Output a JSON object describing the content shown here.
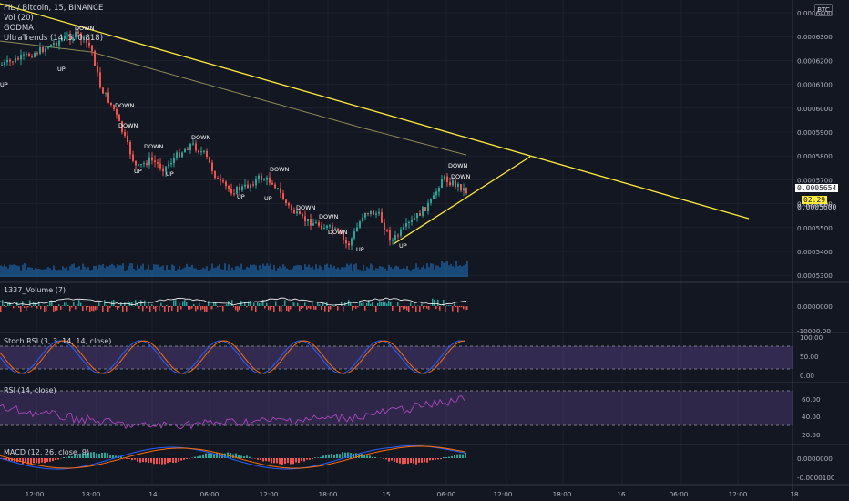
{
  "header": {
    "symbol_line": "FIL / Bitcoin, 15, BINANCE",
    "indicators": [
      "Vol (20)",
      "GODMA",
      "UltraTrends (14, 5, 0.818)"
    ],
    "currency_button": "BTC"
  },
  "price_axis": {
    "ticks": [
      "0.0006400",
      "0.0006300",
      "0.0006200",
      "0.0006100",
      "0.0006000",
      "0.0005900",
      "0.0005800",
      "0.0005700",
      "0.0005600",
      "0.0005500",
      "0.0005400",
      "0.0005300"
    ],
    "last_price": "0.0005654",
    "countdown": "02:29",
    "secondary_tag": "0.0005600"
  },
  "signals": [
    {
      "label": "DOWN"
    },
    {
      "label": "UP"
    },
    {
      "label": "DOWN"
    },
    {
      "label": "DOWN"
    },
    {
      "label": "UP"
    },
    {
      "label": "DOWN"
    },
    {
      "label": "UP"
    },
    {
      "label": "DOWN"
    },
    {
      "label": "UP"
    },
    {
      "label": "DOWN"
    },
    {
      "label": "UP"
    },
    {
      "label": "DOWN"
    },
    {
      "label": "DOWN"
    },
    {
      "label": "DOWN"
    },
    {
      "label": "UP"
    },
    {
      "label": "UP"
    },
    {
      "label": "DOWN"
    },
    {
      "label": "DOWN"
    },
    {
      "label": "UP"
    }
  ],
  "panes": {
    "volume_1337": {
      "title": "1337_Volume (7)",
      "ticks": [
        "0.0000000",
        "-10000.00"
      ]
    },
    "stoch_rsi": {
      "title": "Stoch RSI (3, 3, 14, 14, close)",
      "ticks": [
        "100.00",
        "50.00",
        "0.00"
      ]
    },
    "rsi": {
      "title": "RSI (14, close)",
      "ticks": [
        "60.00",
        "40.00",
        "20.00"
      ]
    },
    "macd": {
      "title": "MACD (12, 26, close, 9)",
      "ticks": [
        "0.0000000",
        "-0.0000100"
      ]
    }
  },
  "time_axis": {
    "labels": [
      "12:00",
      "18:00",
      "14",
      "06:00",
      "12:00",
      "18:00",
      "15",
      "06:00",
      "12:00",
      "18:00",
      "16",
      "06:00",
      "12:00",
      "18"
    ]
  },
  "colors": {
    "background": "#131722",
    "up_candle": "#26a69a",
    "down_candle": "#ef5350",
    "trendline": "#ffeb3b",
    "godma": "#8d8b55",
    "volume": "#1e88e5",
    "oscillator_band": "#7e57c2",
    "k_line": "#2962ff",
    "d_line": "#ff6d00",
    "rsi_line": "#ab47bc"
  }
}
